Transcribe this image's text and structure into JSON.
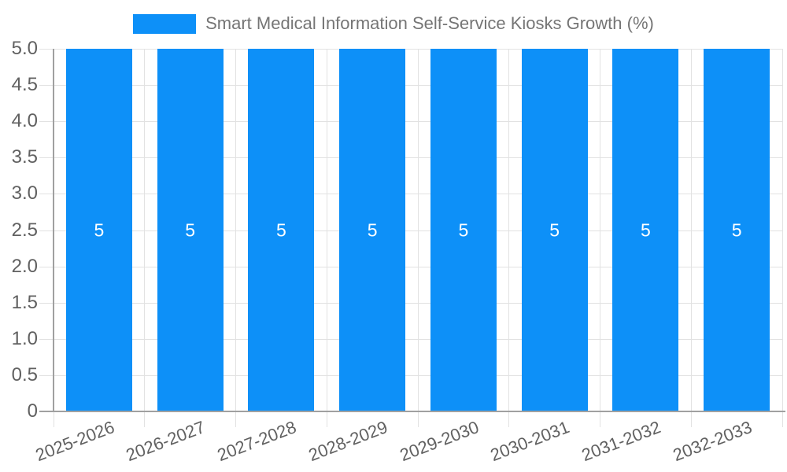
{
  "chart_data": {
    "type": "bar",
    "title": "Smart Medical Information Self-Service Kiosks Growth (%)",
    "categories": [
      "2025-2026",
      "2026-2027",
      "2027-2028",
      "2028-2029",
      "2029-2030",
      "2030-2031",
      "2031-2032",
      "2032-2033"
    ],
    "values": [
      5,
      5,
      5,
      5,
      5,
      5,
      5,
      5
    ],
    "bar_labels": [
      "5",
      "5",
      "5",
      "5",
      "5",
      "5",
      "5",
      "5"
    ],
    "y_ticks": [
      "5.0",
      "4.5",
      "4.0",
      "3.5",
      "3.0",
      "2.5",
      "2.0",
      "1.5",
      "1.0",
      "0.5",
      "0"
    ],
    "ylim": [
      0,
      5
    ],
    "xlabel": "",
    "ylabel": "",
    "grid": true,
    "legend_position": "top-center",
    "colors": {
      "bar": "#0d90f8",
      "grid": "#e2e2e2",
      "axis": "#a0a0a0",
      "tick_label": "#616161",
      "title": "#757575",
      "value_label": "#ffffff"
    }
  }
}
